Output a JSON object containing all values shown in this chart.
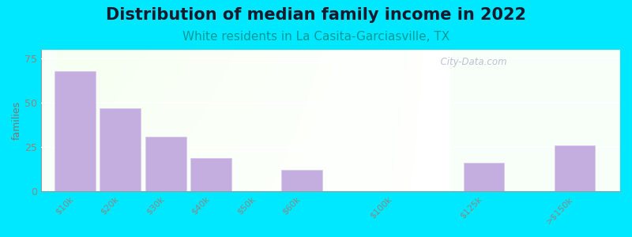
{
  "title": "Distribution of median family income in 2022",
  "subtitle": "White residents in La Casita-Garciasville, TX",
  "ylabel": "families",
  "categories": [
    "$10k",
    "$20k",
    "$30k",
    "$40k",
    "$50k",
    "$60k",
    "$100k",
    "$125k",
    ">$150k"
  ],
  "x_positions": [
    0,
    1,
    2,
    3,
    5,
    8,
    11,
    13,
    15
  ],
  "values": [
    68,
    47,
    31,
    19,
    12,
    0,
    16,
    26,
    0
  ],
  "bar_positions": [
    0,
    1,
    2,
    3,
    5,
    11,
    13,
    15
  ],
  "bar_values": [
    68,
    47,
    31,
    19,
    12,
    16,
    26,
    0
  ],
  "bar_color": "#c4aee0",
  "bar_edge_color": "#d8c8ee",
  "background_outer": "#00e8ff",
  "title_fontsize": 15,
  "subtitle_fontsize": 11,
  "subtitle_color": "#009999",
  "ylabel_color": "#777777",
  "tick_color": "#888888",
  "ylim": [
    0,
    80
  ],
  "yticks": [
    0,
    25,
    50,
    75
  ],
  "watermark": "  City-Data.com",
  "xlim_min": -0.8,
  "xlim_max": 16.5
}
